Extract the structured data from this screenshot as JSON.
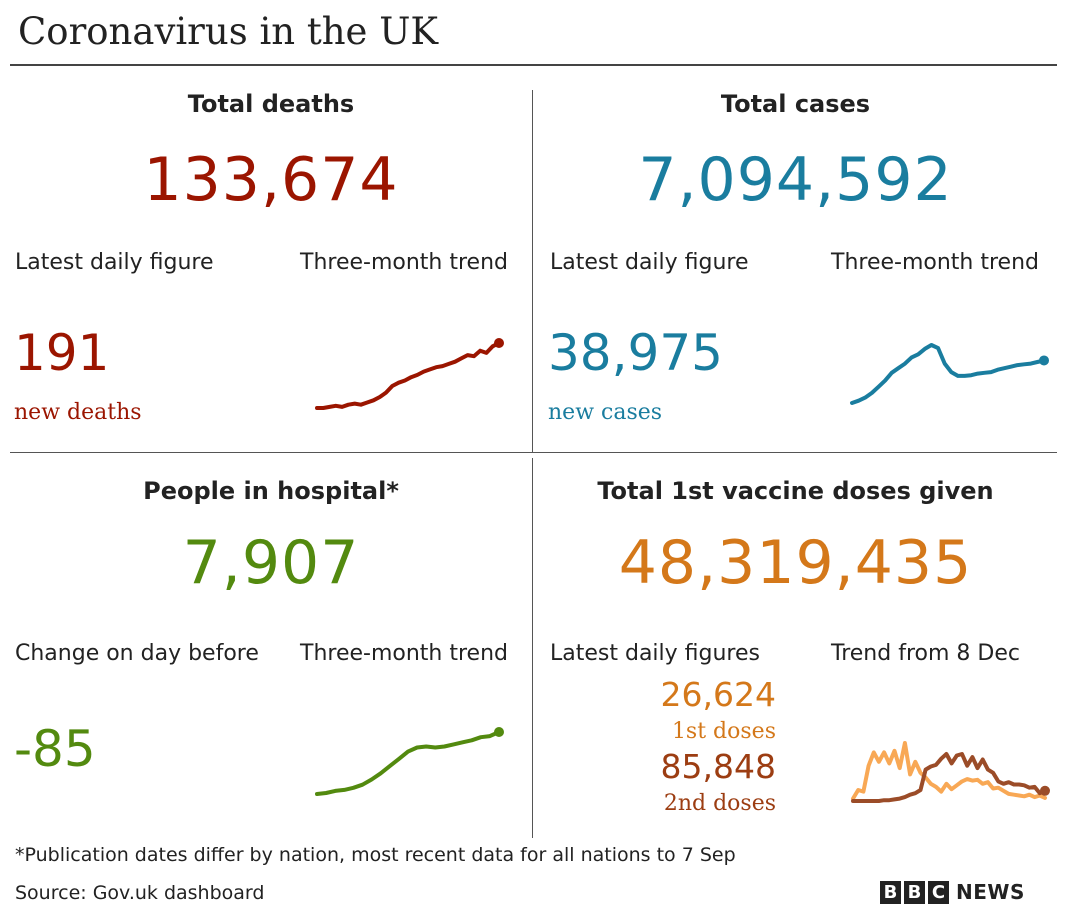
{
  "title": "Coronavirus in the UK",
  "colors": {
    "deaths": "#9b1500",
    "cases": "#1a7d9f",
    "hospital": "#538a0f",
    "first_doses": "#d4781a",
    "second_doses": "#9c3d12",
    "first_doses_trend": "#f8a855",
    "second_doses_trend": "#9b4c28"
  },
  "deaths": {
    "heading": "Total deaths",
    "total": "133,674",
    "latest_label": "Latest daily figure",
    "trend_label": "Three-month trend",
    "daily_value": "191",
    "daily_caption": "new deaths"
  },
  "cases": {
    "heading": "Total cases",
    "total": "7,094,592",
    "latest_label": "Latest daily figure",
    "trend_label": "Three-month trend",
    "daily_value": "38,975",
    "daily_caption": "new cases"
  },
  "hospital": {
    "heading": "People in hospital*",
    "total": "7,907",
    "latest_label": "Change on day before",
    "trend_label": "Three-month trend",
    "daily_value": "-85"
  },
  "vaccine": {
    "heading": "Total 1st vaccine doses given",
    "total": "48,319,435",
    "latest_label": "Latest daily figures",
    "trend_label": "Trend from 8 Dec",
    "first_value": "26,624",
    "first_caption": "1st doses",
    "second_value": "85,848",
    "second_caption": "2nd doses"
  },
  "footnote": "*Publication dates differ by nation, most recent data for all nations to 7 Sep",
  "source": "Source: Gov.uk dashboard",
  "logo": {
    "letters": [
      "B",
      "B",
      "C"
    ],
    "word": "NEWS"
  },
  "chart_data": [
    {
      "type": "line",
      "series": [
        {
          "values": [
            10,
            10,
            11,
            12,
            11,
            13,
            14,
            13,
            15,
            17,
            20,
            24,
            30,
            33,
            35,
            38,
            40,
            43,
            45,
            47,
            48,
            50,
            52,
            55,
            58,
            57,
            62,
            60,
            66,
            69
          ]
        }
      ]
    },
    {
      "type": "line",
      "series": [
        {
          "values": [
            5,
            8,
            12,
            18,
            26,
            34,
            44,
            50,
            56,
            64,
            68,
            75,
            80,
            76,
            56,
            45,
            40,
            40,
            41,
            43,
            44,
            45,
            48,
            50,
            52,
            54,
            55,
            56,
            58,
            60
          ]
        }
      ]
    },
    {
      "type": "line",
      "series": [
        {
          "values": [
            2,
            3,
            5,
            6,
            8,
            11,
            16,
            22,
            29,
            36,
            43,
            47,
            48,
            47,
            48,
            50,
            52,
            54,
            57,
            58,
            62
          ]
        }
      ]
    },
    {
      "type": "line",
      "series": [
        {
          "values": [
            3,
            14,
            12,
            45,
            62,
            50,
            62,
            48,
            64,
            42,
            74,
            34,
            50,
            36,
            30,
            22,
            18,
            12,
            22,
            15,
            20,
            25,
            28,
            26,
            27,
            22,
            24,
            16,
            17,
            13,
            9,
            8,
            7,
            6,
            8,
            5,
            7,
            4
          ]
        },
        {
          "values": [
            0,
            0,
            0,
            0,
            0,
            0,
            1,
            1,
            2,
            3,
            5,
            8,
            10,
            14,
            40,
            44,
            46,
            54,
            60,
            48,
            58,
            60,
            45,
            56,
            42,
            53,
            40,
            36,
            25,
            22,
            24,
            21,
            21,
            20,
            17,
            18,
            10,
            13
          ]
        }
      ]
    }
  ]
}
